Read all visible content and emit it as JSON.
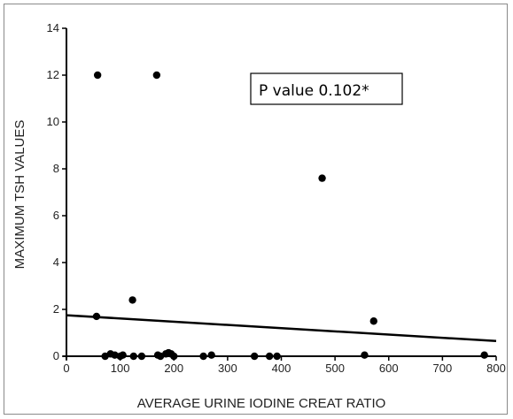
{
  "chart_data": {
    "type": "scatter",
    "title": "",
    "xlabel": "AVERAGE URINE IODINE CREAT RATIO",
    "ylabel": "MAXIMUM TSH VALUES",
    "xlim": [
      0,
      800
    ],
    "ylim": [
      0,
      14
    ],
    "xticks": [
      "0",
      "100",
      "200",
      "300",
      "400",
      "500",
      "600",
      "700",
      "800"
    ],
    "yticks": [
      "0",
      "2",
      "4",
      "6",
      "8",
      "10",
      "12",
      "14"
    ],
    "grid": false,
    "legend": "none",
    "annotation": "P value 0.102*",
    "points": [
      {
        "x": 58,
        "y": 12.0
      },
      {
        "x": 168,
        "y": 12.0
      },
      {
        "x": 476,
        "y": 7.6
      },
      {
        "x": 123,
        "y": 2.4
      },
      {
        "x": 572,
        "y": 1.5
      },
      {
        "x": 56,
        "y": 1.7
      },
      {
        "x": 72,
        "y": 0.0
      },
      {
        "x": 82,
        "y": 0.1
      },
      {
        "x": 90,
        "y": 0.05
      },
      {
        "x": 100,
        "y": 0.0
      },
      {
        "x": 105,
        "y": 0.05
      },
      {
        "x": 125,
        "y": 0.0
      },
      {
        "x": 140,
        "y": 0.0
      },
      {
        "x": 170,
        "y": 0.05
      },
      {
        "x": 175,
        "y": 0.0
      },
      {
        "x": 185,
        "y": 0.1
      },
      {
        "x": 190,
        "y": 0.15
      },
      {
        "x": 195,
        "y": 0.1
      },
      {
        "x": 200,
        "y": 0.0
      },
      {
        "x": 255,
        "y": 0.0
      },
      {
        "x": 270,
        "y": 0.05
      },
      {
        "x": 350,
        "y": 0.0
      },
      {
        "x": 378,
        "y": 0.0
      },
      {
        "x": 392,
        "y": 0.0
      },
      {
        "x": 555,
        "y": 0.05
      },
      {
        "x": 778,
        "y": 0.05
      }
    ],
    "trendline": {
      "x": [
        0,
        800
      ],
      "y": [
        1.75,
        0.65
      ]
    },
    "colors": {
      "points": "#000000",
      "line": "#000000",
      "axes": "#000000"
    }
  }
}
